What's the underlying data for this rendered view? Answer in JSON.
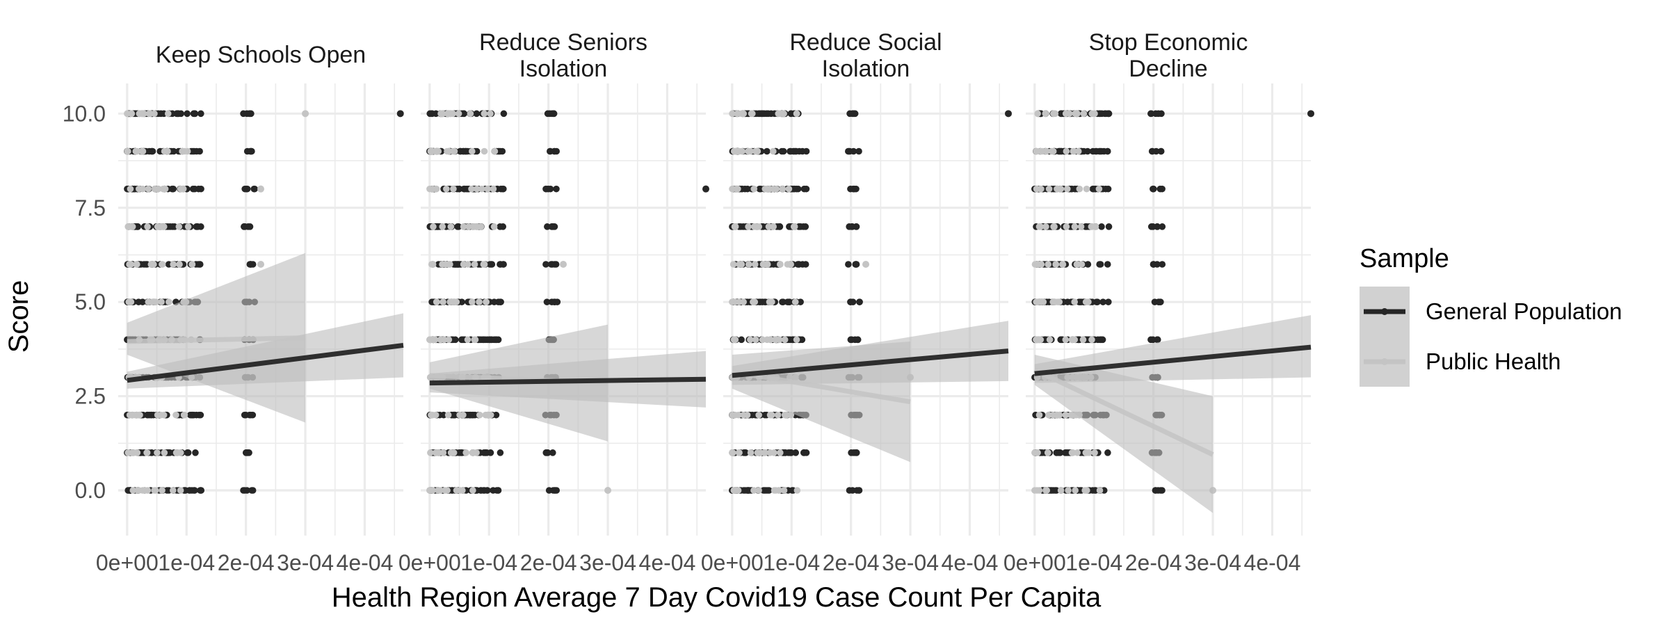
{
  "chart_data": {
    "type": "scatter",
    "xlabel": "Health Region Average 7 Day Covid19 Case Count Per Capita",
    "ylabel": "Score",
    "xlim": [
      -1.5e-05,
      0.000465
    ],
    "ylim": [
      -1.2,
      10.8
    ],
    "x_ticks": [
      0,
      0.0001,
      0.0002,
      0.0003,
      0.0004
    ],
    "x_tick_labels": [
      "0e+00",
      "1e-04",
      "2e-04",
      "3e-04",
      "4e-04"
    ],
    "y_ticks": [
      0,
      2.5,
      5,
      7.5,
      10
    ],
    "y_tick_labels": [
      "0.0",
      "2.5",
      "5.0",
      "7.5",
      "10.0"
    ],
    "grid": true,
    "legend": {
      "title": "Sample",
      "position": "right",
      "entries": [
        {
          "label": "General Population",
          "color": "#262626"
        },
        {
          "label": "Public Health",
          "color": "#c4c4c4"
        }
      ]
    },
    "colors": {
      "general": "#262626",
      "public": "#c4c4c4",
      "band": "#bdbdbd",
      "grid": "#ebebeb"
    },
    "panels": [
      {
        "title": [
          "Keep Schools Open"
        ],
        "fits": {
          "general": {
            "x": [
              0,
              0.000465
            ],
            "y": [
              2.92,
              3.85
            ],
            "lo": [
              2.7,
              3.0
            ],
            "hi": [
              3.15,
              4.7
            ]
          },
          "public": {
            "x": [
              0,
              0.0003
            ],
            "y": [
              3.95,
              4.05
            ],
            "lo": [
              3.6,
              1.8
            ],
            "hi": [
              4.45,
              6.3
            ]
          }
        },
        "outliers": [
          {
            "x": 0.00046,
            "y": 10,
            "sample": "general"
          },
          {
            "x": 0.0003,
            "y": 10,
            "sample": "public"
          },
          {
            "x": 0.000225,
            "y": 8,
            "sample": "public"
          },
          {
            "x": 0.000225,
            "y": 6,
            "sample": "public"
          }
        ]
      },
      {
        "title": [
          "Reduce Seniors",
          "Isolation"
        ],
        "fits": {
          "general": {
            "x": [
              0,
              0.000465
            ],
            "y": [
              2.85,
              2.95
            ],
            "lo": [
              2.6,
              2.2
            ],
            "hi": [
              3.1,
              3.7
            ]
          },
          "public": {
            "x": [
              0,
              0.0003
            ],
            "y": [
              3.05,
              2.85
            ],
            "lo": [
              2.7,
              1.3
            ],
            "hi": [
              3.4,
              4.4
            ]
          }
        },
        "outliers": [
          {
            "x": 0.000465,
            "y": 8,
            "sample": "general"
          },
          {
            "x": 0.0003,
            "y": 0,
            "sample": "public"
          },
          {
            "x": 0.000225,
            "y": 6,
            "sample": "public"
          }
        ]
      },
      {
        "title": [
          "Reduce Social",
          "Isolation"
        ],
        "fits": {
          "general": {
            "x": [
              0,
              0.000465
            ],
            "y": [
              3.05,
              3.7
            ],
            "lo": [
              2.8,
              2.9
            ],
            "hi": [
              3.3,
              4.5
            ]
          },
          "public": {
            "x": [
              0,
              0.0003
            ],
            "y": [
              3.15,
              2.35
            ],
            "lo": [
              2.7,
              0.75
            ],
            "hi": [
              3.6,
              3.95
            ]
          }
        },
        "outliers": [
          {
            "x": 0.000465,
            "y": 10,
            "sample": "general"
          },
          {
            "x": 0.0003,
            "y": 3,
            "sample": "public"
          },
          {
            "x": 0.000225,
            "y": 6,
            "sample": "public"
          }
        ]
      },
      {
        "title": [
          "Stop Economic",
          "Decline"
        ],
        "fits": {
          "general": {
            "x": [
              0,
              0.000465
            ],
            "y": [
              3.1,
              3.8
            ],
            "lo": [
              2.85,
              3.0
            ],
            "hi": [
              3.35,
              4.65
            ]
          },
          "public": {
            "x": [
              0,
              0.0003
            ],
            "y": [
              3.2,
              0.95
            ],
            "lo": [
              2.8,
              -0.6
            ],
            "hi": [
              3.6,
              2.5
            ]
          }
        },
        "outliers": [
          {
            "x": 0.000465,
            "y": 10,
            "sample": "general"
          },
          {
            "x": 0.0003,
            "y": 0,
            "sample": "public"
          }
        ]
      }
    ]
  }
}
